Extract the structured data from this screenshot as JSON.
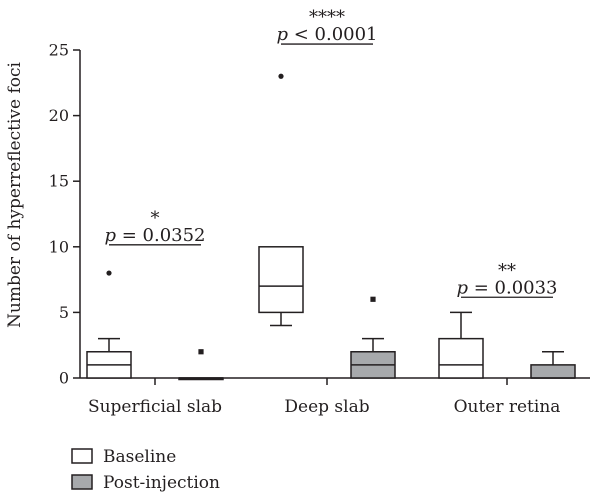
{
  "chart_data": {
    "type": "box",
    "ylabel": "Number of hyperreflective foci",
    "ylim": [
      0,
      25
    ],
    "yticks": [
      0,
      5,
      10,
      15,
      20,
      25
    ],
    "categories": [
      "Superficial slab",
      "Deep slab",
      "Outer retina"
    ],
    "series": [
      {
        "name": "Baseline",
        "color": "#ffffff",
        "boxes": [
          {
            "min": 0,
            "q1": 0,
            "median": 1,
            "q3": 2,
            "max": 3,
            "outliers": [
              8
            ]
          },
          {
            "min": 4,
            "q1": 5,
            "median": 7,
            "q3": 10,
            "max": 10,
            "outliers": [
              23
            ]
          },
          {
            "min": 0,
            "q1": 0,
            "median": 1,
            "q3": 3,
            "max": 5,
            "outliers": []
          }
        ]
      },
      {
        "name": "Post-injection",
        "color": "#a7a9ac",
        "boxes": [
          {
            "min": 0,
            "q1": 0,
            "median": 0,
            "q3": 0,
            "max": 0,
            "outliers": [
              2
            ]
          },
          {
            "min": 0,
            "q1": 0,
            "median": 1,
            "q3": 2,
            "max": 3,
            "outliers": [
              6
            ]
          },
          {
            "min": 0,
            "q1": 0,
            "median": 0,
            "q3": 1,
            "max": 2,
            "outliers": []
          }
        ]
      }
    ],
    "annotations": [
      {
        "category": 0,
        "stars": "*",
        "p_symbol": "p",
        "p_text": " = 0.0352",
        "y": 10
      },
      {
        "category": 1,
        "stars": "****",
        "p_symbol": "p",
        "p_text": " < 0.0001",
        "y": 25.3
      },
      {
        "category": 2,
        "stars": "**",
        "p_symbol": "p",
        "p_text": " = 0.0033",
        "y": 6
      }
    ],
    "legend": {
      "placement": "bottom-left"
    }
  }
}
